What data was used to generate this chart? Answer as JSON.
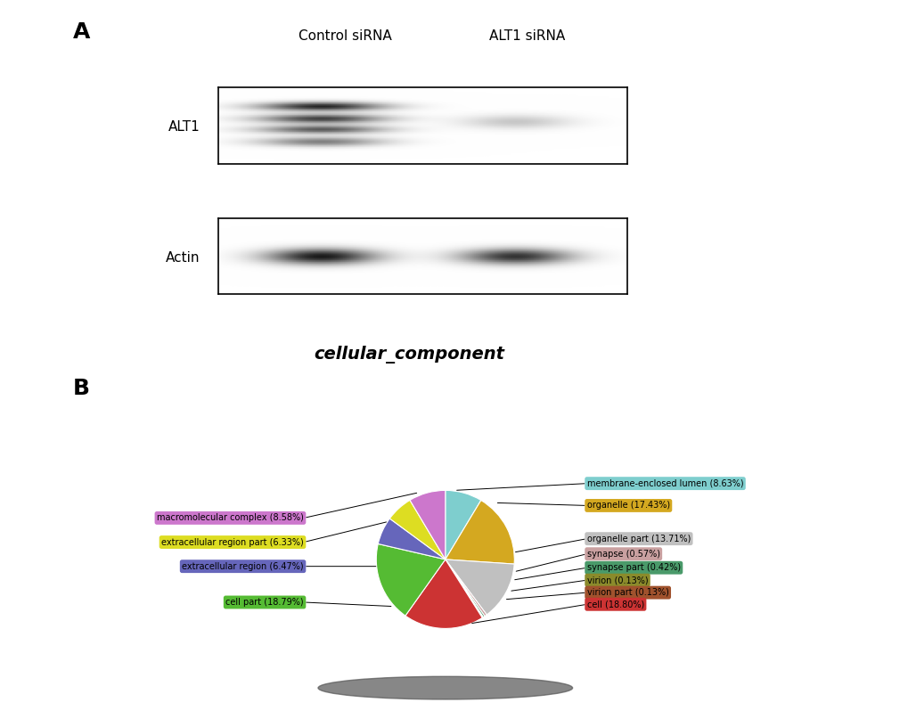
{
  "panel_a_label": "A",
  "panel_b_label": "B",
  "western_blot_labels": [
    "Control siRNA",
    "ALT1 siRNA"
  ],
  "band_labels": [
    "ALT1",
    "Actin"
  ],
  "subtitle": "cellular_component",
  "pie_data": [
    {
      "label": "membrane-enclosed lumen",
      "value": 8.63,
      "color": "#7ECECE"
    },
    {
      "label": "organelle",
      "value": 17.43,
      "color": "#D4A820"
    },
    {
      "label": "organelle part",
      "value": 13.71,
      "color": "#C0C0C0"
    },
    {
      "label": "synapse",
      "value": 0.57,
      "color": "#C9A0A0"
    },
    {
      "label": "synapse part",
      "value": 0.42,
      "color": "#4A9A6A"
    },
    {
      "label": "virion",
      "value": 0.13,
      "color": "#8B8B2B"
    },
    {
      "label": "virion part",
      "value": 0.13,
      "color": "#A0522D"
    },
    {
      "label": "cell",
      "value": 18.8,
      "color": "#CC3333"
    },
    {
      "label": "cell part",
      "value": 18.79,
      "color": "#55BB33"
    },
    {
      "label": "extracellular region",
      "value": 6.47,
      "color": "#6666BB"
    },
    {
      "label": "extracellular region part",
      "value": 6.33,
      "color": "#DDDD22"
    },
    {
      "label": "macromolecular complex",
      "value": 8.58,
      "color": "#CC77CC"
    }
  ],
  "background_color": "#ffffff"
}
